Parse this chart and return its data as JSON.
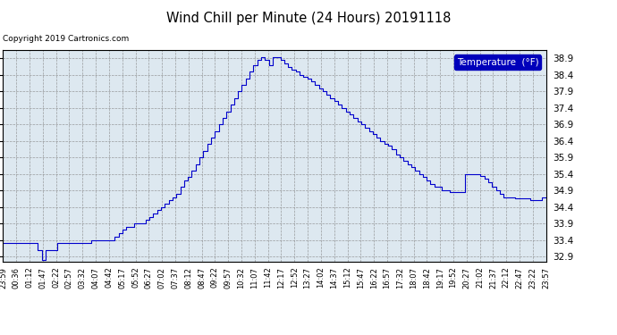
{
  "title": "Wind Chill per Minute (24 Hours) 20191118",
  "copyright": "Copyright 2019 Cartronics.com",
  "legend_label": "Temperature  (°F)",
  "line_color": "#0000cc",
  "legend_bg": "#0000bb",
  "legend_text_color": "#ffffff",
  "bg_color": "#ffffff",
  "plot_bg_color": "#dde8f0",
  "grid_color": "#aaaaaa",
  "title_color": "#000000",
  "ylim": [
    32.75,
    39.15
  ],
  "yticks": [
    32.9,
    33.4,
    33.9,
    34.4,
    34.9,
    35.4,
    35.9,
    36.4,
    36.9,
    37.4,
    37.9,
    38.4,
    38.9
  ],
  "x_labels": [
    "23:59",
    "00:36",
    "01:12",
    "01:47",
    "02:22",
    "02:57",
    "03:32",
    "04:07",
    "04:42",
    "05:17",
    "05:52",
    "06:27",
    "07:02",
    "07:37",
    "08:12",
    "08:47",
    "09:22",
    "09:57",
    "10:32",
    "11:07",
    "11:42",
    "12:17",
    "12:52",
    "13:27",
    "14:02",
    "14:37",
    "15:12",
    "15:47",
    "16:22",
    "16:57",
    "17:32",
    "18:07",
    "18:42",
    "19:17",
    "19:52",
    "20:27",
    "21:02",
    "21:37",
    "22:12",
    "22:47",
    "23:22",
    "23:57"
  ],
  "data_y": [
    33.3,
    33.3,
    33.3,
    33.3,
    33.3,
    33.3,
    33.3,
    33.3,
    33.3,
    33.1,
    32.8,
    33.1,
    33.1,
    33.1,
    33.3,
    33.3,
    33.3,
    33.3,
    33.3,
    33.3,
    33.3,
    33.3,
    33.3,
    33.4,
    33.4,
    33.4,
    33.4,
    33.4,
    33.4,
    33.5,
    33.6,
    33.7,
    33.8,
    33.8,
    33.9,
    33.9,
    33.9,
    34.0,
    34.1,
    34.2,
    34.3,
    34.4,
    34.5,
    34.6,
    34.7,
    34.8,
    35.0,
    35.2,
    35.3,
    35.5,
    35.7,
    35.9,
    36.1,
    36.3,
    36.5,
    36.7,
    36.9,
    37.1,
    37.3,
    37.5,
    37.7,
    37.9,
    38.1,
    38.3,
    38.5,
    38.7,
    38.85,
    38.95,
    38.85,
    38.7,
    38.95,
    38.95,
    38.85,
    38.75,
    38.65,
    38.55,
    38.5,
    38.4,
    38.35,
    38.3,
    38.2,
    38.1,
    38.0,
    37.9,
    37.8,
    37.7,
    37.6,
    37.5,
    37.4,
    37.3,
    37.2,
    37.1,
    37.0,
    36.9,
    36.8,
    36.7,
    36.6,
    36.5,
    36.4,
    36.3,
    36.25,
    36.15,
    36.0,
    35.9,
    35.8,
    35.7,
    35.6,
    35.5,
    35.4,
    35.3,
    35.2,
    35.1,
    35.0,
    35.0,
    34.9,
    34.9,
    34.85,
    34.85,
    34.85,
    34.85,
    35.4,
    35.4,
    35.4,
    35.4,
    35.35,
    35.25,
    35.15,
    35.0,
    34.9,
    34.8,
    34.7,
    34.7,
    34.7,
    34.65,
    34.65,
    34.65,
    34.65,
    34.6,
    34.6,
    34.6,
    34.7,
    34.7
  ]
}
